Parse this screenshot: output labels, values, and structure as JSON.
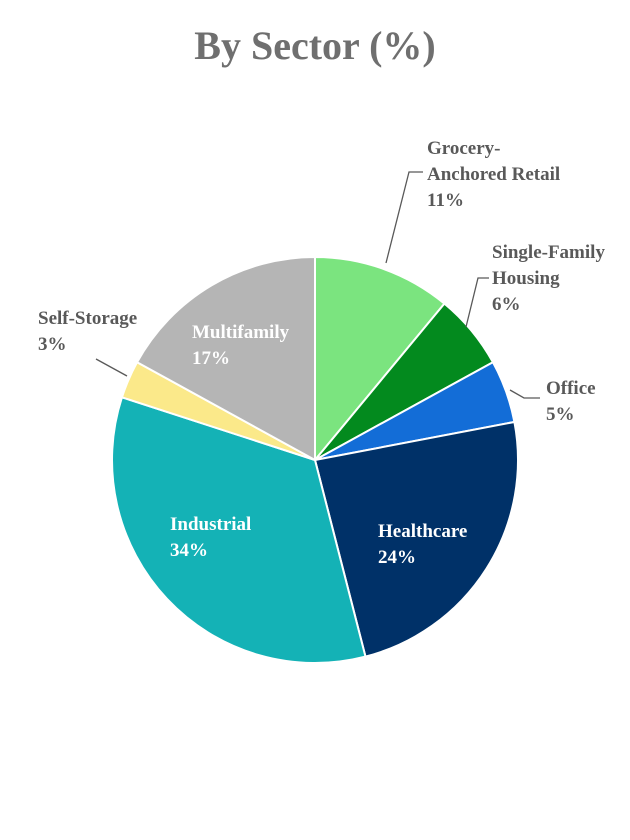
{
  "chart_data": {
    "type": "pie",
    "title": "By Sector (%)",
    "unit": "%",
    "slices": [
      {
        "name": "Grocery-Anchored Retail",
        "label_lines": [
          "Grocery-",
          "Anchored Retail"
        ],
        "value": 11,
        "value_label": "11%",
        "color": "#7be47f",
        "label_placement": "outside"
      },
      {
        "name": "Single-Family Housing",
        "label_lines": [
          "Single-Family",
          "Housing"
        ],
        "value": 6,
        "value_label": "6%",
        "color": "#038a1e",
        "label_placement": "outside"
      },
      {
        "name": "Office",
        "label_lines": [
          "Office"
        ],
        "value": 5,
        "value_label": "5%",
        "color": "#136dd7",
        "label_placement": "outside"
      },
      {
        "name": "Healthcare",
        "label_lines": [
          "Healthcare"
        ],
        "value": 24,
        "value_label": "24%",
        "color": "#003168",
        "label_placement": "inside"
      },
      {
        "name": "Industrial",
        "label_lines": [
          "Industrial"
        ],
        "value": 34,
        "value_label": "34%",
        "color": "#14b2b6",
        "label_placement": "inside"
      },
      {
        "name": "Self-Storage",
        "label_lines": [
          "Self-Storage"
        ],
        "value": 3,
        "value_label": "3%",
        "color": "#fbe98a",
        "label_placement": "outside"
      },
      {
        "name": "Multifamily",
        "label_lines": [
          "Multifamily"
        ],
        "value": 17,
        "value_label": "17%",
        "color": "#b5b5b5",
        "label_placement": "inside"
      }
    ],
    "inside_label_color": "#ffffff",
    "outside_label_color": "#595959",
    "title_color": "#6f6f6f"
  }
}
